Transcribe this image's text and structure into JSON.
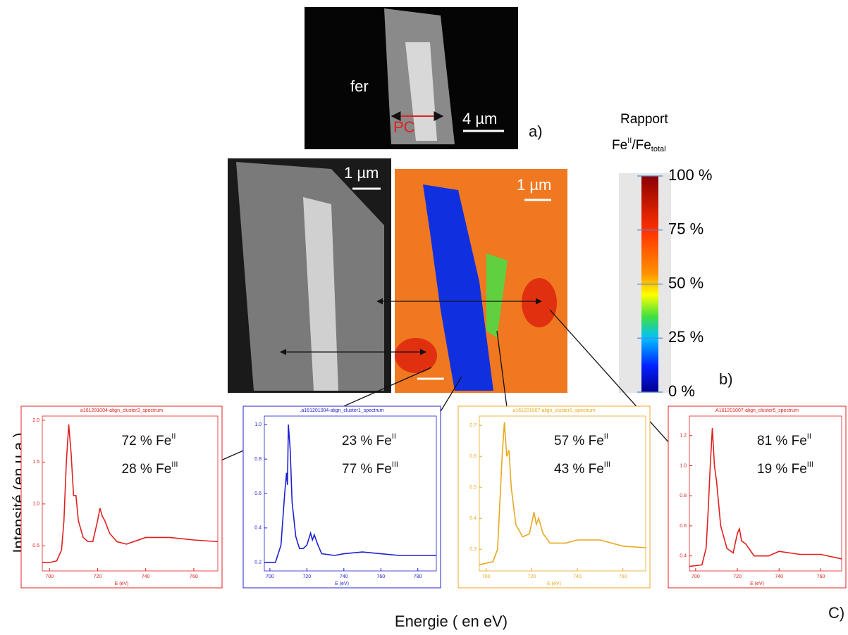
{
  "panel_labels": {
    "a": "a)",
    "b": "b)",
    "c": "C)"
  },
  "sem_top": {
    "label": "fer",
    "region": "PC",
    "scale": "4 µm"
  },
  "sem_mid": {
    "scale": "1 µm"
  },
  "map": {
    "scale": "1 µm"
  },
  "colorbar": {
    "title": "Rapport",
    "ratio": {
      "num": "Fe",
      "num_sup": "II",
      "den": "/Fe",
      "den_sub": "total"
    },
    "ticks": [
      {
        "value": 100,
        "label": "100 %"
      },
      {
        "value": 75,
        "label": "75 %"
      },
      {
        "value": 50,
        "label": "50 %"
      },
      {
        "value": 25,
        "label": "25 %"
      },
      {
        "value": 0,
        "label": "0 %"
      }
    ]
  },
  "y_label": "Intensité (en u.a.)",
  "x_label": "Energie ( en eV)",
  "chart_data": [
    {
      "type": "line",
      "title": "a161201004-align_cluster3_spectrum",
      "x_label": "E (eV)",
      "color": "#e02020",
      "fractions": [
        {
          "text": "72 % Fe",
          "sup": "II"
        },
        {
          "text": "28 % Fe",
          "sup": "III"
        }
      ],
      "x": [
        697,
        700,
        703,
        705,
        706,
        707,
        708,
        709,
        710,
        711,
        712,
        714,
        716,
        718,
        720,
        721,
        722,
        723,
        725,
        728,
        732,
        736,
        740,
        750,
        760,
        770
      ],
      "values": [
        0.3,
        0.3,
        0.32,
        0.45,
        0.8,
        1.5,
        1.95,
        1.6,
        1.1,
        1.1,
        0.8,
        0.6,
        0.55,
        0.55,
        0.8,
        0.95,
        0.85,
        0.8,
        0.65,
        0.55,
        0.52,
        0.56,
        0.6,
        0.6,
        0.57,
        0.55
      ],
      "xlim": [
        697,
        770
      ],
      "xticks": [
        700,
        720,
        740,
        760
      ],
      "ylim": [
        0.2,
        2.05
      ],
      "yticks": [
        0.5,
        {
          "value": 1,
          "label": "1.0"
        },
        1.5,
        {
          "value": 2,
          "label": "2.0"
        }
      ]
    },
    {
      "type": "line",
      "title": ".a161201004-align_cluster1_spectrum",
      "x_label": "E (eV)",
      "color": "#2020d0",
      "fractions": [
        {
          "text": "23 % Fe",
          "sup": "II"
        },
        {
          "text": "77 % Fe",
          "sup": "III"
        }
      ],
      "x": [
        697,
        703,
        706,
        708,
        709,
        709.5,
        710,
        711,
        712,
        714,
        716,
        718,
        720,
        722,
        723,
        724,
        726,
        728,
        735,
        740,
        750,
        760,
        770,
        790
      ],
      "values": [
        0.2,
        0.2,
        0.3,
        0.6,
        0.72,
        0.65,
        1.0,
        0.85,
        0.55,
        0.35,
        0.28,
        0.28,
        0.3,
        0.37,
        0.33,
        0.36,
        0.3,
        0.25,
        0.24,
        0.25,
        0.26,
        0.25,
        0.24,
        0.24
      ],
      "xlim": [
        697,
        790
      ],
      "xticks": [
        700,
        720,
        740,
        760,
        780
      ],
      "ylim": [
        0.15,
        1.05
      ],
      "yticks": [
        0.2,
        0.4,
        0.6,
        0.8,
        {
          "value": 1,
          "label": "1.0"
        }
      ]
    },
    {
      "type": "line",
      "title": "a161201007-align_cluster1_spectrum",
      "x_label": "E (eV)",
      "color": "#e8a820",
      "fractions": [
        {
          "text": "57 % Fe",
          "sup": "II"
        },
        {
          "text": "43 % Fe",
          "sup": "III"
        }
      ],
      "x": [
        697,
        703,
        705,
        706,
        707,
        708,
        709,
        710,
        711,
        713,
        716,
        719,
        721,
        722,
        723,
        725,
        728,
        735,
        740,
        750,
        760,
        770
      ],
      "values": [
        0.25,
        0.26,
        0.3,
        0.45,
        0.6,
        0.71,
        0.6,
        0.62,
        0.5,
        0.38,
        0.34,
        0.35,
        0.42,
        0.38,
        0.4,
        0.35,
        0.32,
        0.32,
        0.33,
        0.33,
        0.31,
        0.305
      ],
      "xlim": [
        697,
        770
      ],
      "xticks": [
        700,
        720,
        740,
        760
      ],
      "ylim": [
        0.23,
        0.73
      ],
      "yticks": [
        0.3,
        0.4,
        0.5,
        0.6,
        0.7
      ]
    },
    {
      "type": "line",
      "title": "A161201007-align_cluster5_spectrum",
      "x_label": "E (eV)",
      "color": "#e02020",
      "fractions": [
        {
          "text": "81 % Fe",
          "sup": "II"
        },
        {
          "text": "19 % Fe",
          "sup": "III"
        }
      ],
      "x": [
        697,
        703,
        705,
        706,
        707,
        708,
        709,
        710,
        712,
        715,
        718,
        720,
        721,
        722,
        724,
        728,
        735,
        740,
        750,
        760,
        770
      ],
      "values": [
        0.33,
        0.34,
        0.45,
        0.7,
        1.0,
        1.25,
        1.0,
        0.9,
        0.6,
        0.45,
        0.42,
        0.55,
        0.58,
        0.5,
        0.48,
        0.4,
        0.4,
        0.43,
        0.41,
        0.41,
        0.38
      ],
      "xlim": [
        697,
        770
      ],
      "xticks": [
        700,
        720,
        740,
        760
      ],
      "ylim": [
        0.3,
        1.33
      ],
      "yticks": [
        0.4,
        0.6,
        0.8,
        {
          "value": 1,
          "label": "1.0"
        },
        1.2
      ]
    }
  ]
}
